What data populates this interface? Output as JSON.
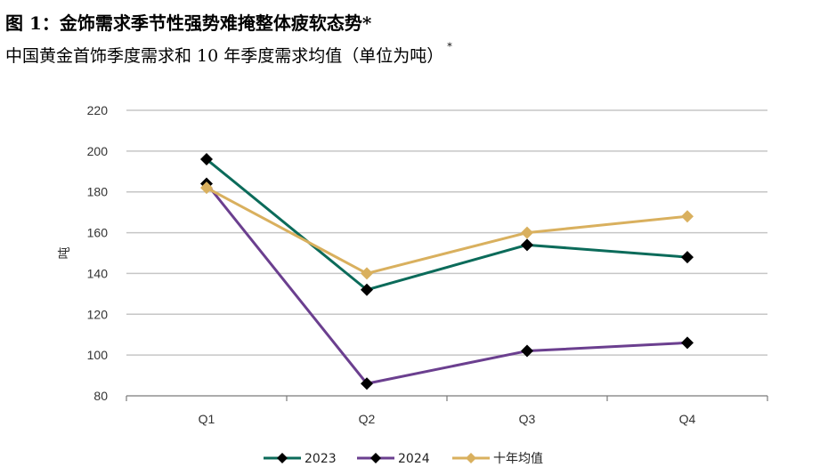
{
  "header": {
    "title": "图 1：金饰需求季节性强势难掩整体疲软态势*",
    "subtitle": "中国黄金首饰季度需求和 10 年季度需求均值（单位为吨）",
    "subtitle_note": "*"
  },
  "chart_data": {
    "type": "line",
    "title": "",
    "xlabel": "",
    "ylabel": "吨",
    "categories": [
      "Q1",
      "Q2",
      "Q3",
      "Q4"
    ],
    "ylim": [
      80,
      220
    ],
    "yticks": [
      80,
      100,
      120,
      140,
      160,
      180,
      200,
      220
    ],
    "grid": true,
    "legend_position": "bottom",
    "series": [
      {
        "name": "2023",
        "color": "#0b6b5a",
        "marker": "diamond",
        "values": [
          196,
          132,
          154,
          148
        ]
      },
      {
        "name": "2024",
        "color": "#6b3f8f",
        "marker": "diamond",
        "values": [
          184,
          86,
          102,
          106
        ]
      },
      {
        "name": "十年均值",
        "color": "#d9b05e",
        "marker": "diamond",
        "values": [
          182,
          140,
          160,
          168
        ]
      }
    ]
  }
}
